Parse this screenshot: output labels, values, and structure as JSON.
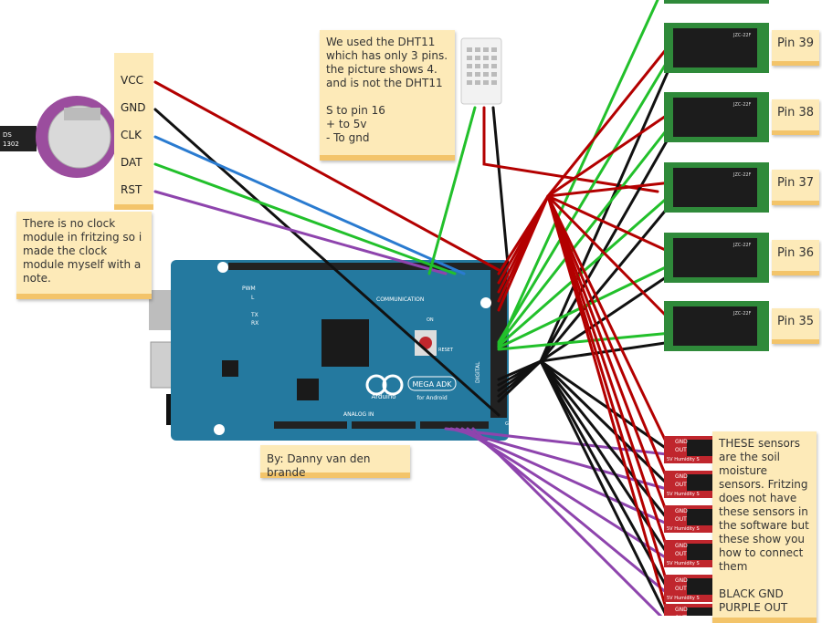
{
  "clock_module": {
    "chip": [
      "DS",
      "1302"
    ],
    "pins": [
      "VCC",
      "GND",
      "CLK",
      "DAT",
      "RST"
    ]
  },
  "notes": {
    "clock": "There is no clock module in fritzing so i made the clock module myself with a note.",
    "dht": [
      [
        "We used the DHT11",
        "which has only 3 pins.",
        "the picture shows 4.",
        "and is not the DHT11"
      ],
      [
        "S to pin 16",
        "+ to 5v",
        "- To gnd"
      ]
    ],
    "credit": "By: Danny van den brande",
    "sensors": [
      [
        "THESE sensors",
        "are the soil",
        "moisture",
        "sensors. Fritzing",
        "does not have",
        "these sensors in",
        "the software but",
        "these show you",
        "how to connect",
        "them"
      ],
      [
        "BLACK GND",
        "PURPLE OUT"
      ]
    ]
  },
  "relays": [
    {
      "label": "Pin 39",
      "part": "JZC-22F"
    },
    {
      "label": "Pin 38",
      "part": "JZC-22F"
    },
    {
      "label": "Pin 37",
      "part": "JZC-22F"
    },
    {
      "label": "Pin 36",
      "part": "JZC-22F"
    },
    {
      "label": "Pin 35",
      "part": "JZC-22F"
    }
  ],
  "board": {
    "brand": "Arduino",
    "name": "MEGA ADK",
    "subtitle": "for Android",
    "labels": {
      "communication": "COMMUNICATION",
      "analog": "ANALOG IN",
      "digital": "DIGITAL",
      "pwm": "PWM",
      "reset": "RESET",
      "on": "ON",
      "tx": "TX",
      "rx": "RX",
      "l": "L",
      "gnd": "GND"
    }
  },
  "sensor_board": {
    "gnd": "GND",
    "out": "OUT",
    "name": "5V Humidity S"
  }
}
